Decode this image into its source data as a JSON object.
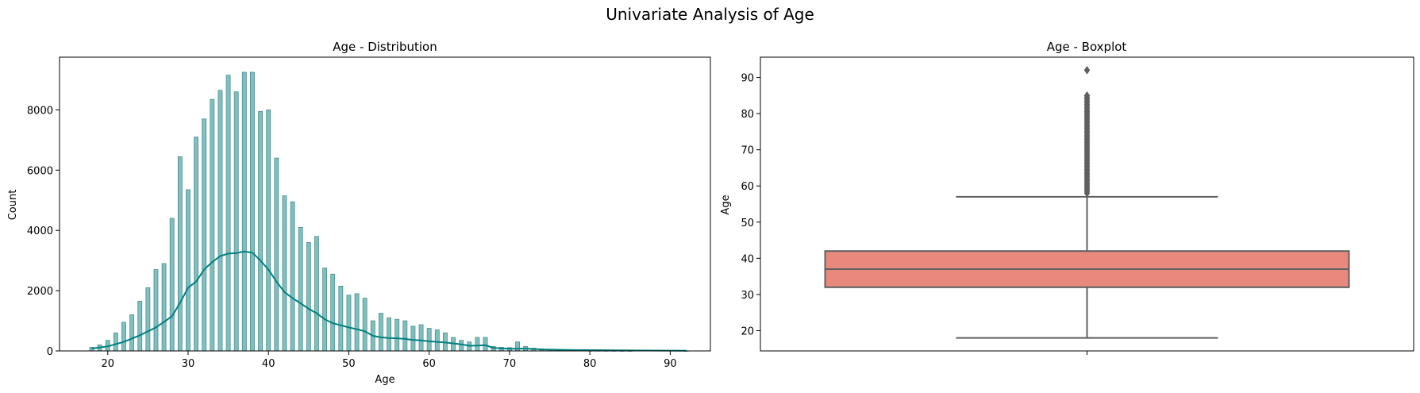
{
  "figure": {
    "suptitle": "Univariate Analysis of Age"
  },
  "chart_data": [
    {
      "type": "bar",
      "subtype": "histogram-with-kde",
      "title": "Age - Distribution",
      "xlabel": "Age",
      "ylabel": "Count",
      "xlim": [
        14,
        95
      ],
      "ylim": [
        0,
        9750
      ],
      "xticks": [
        20,
        30,
        40,
        50,
        60,
        70,
        80,
        90
      ],
      "yticks": [
        0,
        2000,
        4000,
        6000,
        8000
      ],
      "bar_color": "#7fbfbf",
      "bar_edge_color": "#4f8f8f",
      "kde_color": "#008080",
      "bins": [
        {
          "x": 18,
          "count": 120
        },
        {
          "x": 19,
          "count": 200
        },
        {
          "x": 20,
          "count": 350
        },
        {
          "x": 21,
          "count": 600
        },
        {
          "x": 22,
          "count": 950
        },
        {
          "x": 23,
          "count": 1200
        },
        {
          "x": 24,
          "count": 1650
        },
        {
          "x": 25,
          "count": 2100
        },
        {
          "x": 26,
          "count": 2700
        },
        {
          "x": 27,
          "count": 2900
        },
        {
          "x": 28,
          "count": 4400
        },
        {
          "x": 29,
          "count": 6450
        },
        {
          "x": 30,
          "count": 5350
        },
        {
          "x": 31,
          "count": 7100
        },
        {
          "x": 32,
          "count": 7700
        },
        {
          "x": 33,
          "count": 8350
        },
        {
          "x": 34,
          "count": 8650
        },
        {
          "x": 35,
          "count": 9150
        },
        {
          "x": 36,
          "count": 8600
        },
        {
          "x": 37,
          "count": 9250
        },
        {
          "x": 38,
          "count": 9250
        },
        {
          "x": 39,
          "count": 7950
        },
        {
          "x": 40,
          "count": 8000
        },
        {
          "x": 41,
          "count": 6400
        },
        {
          "x": 42,
          "count": 5150
        },
        {
          "x": 43,
          "count": 4950
        },
        {
          "x": 44,
          "count": 4100
        },
        {
          "x": 45,
          "count": 3600
        },
        {
          "x": 46,
          "count": 3800
        },
        {
          "x": 47,
          "count": 2750
        },
        {
          "x": 48,
          "count": 2550
        },
        {
          "x": 49,
          "count": 2150
        },
        {
          "x": 50,
          "count": 1850
        },
        {
          "x": 51,
          "count": 1900
        },
        {
          "x": 52,
          "count": 1750
        },
        {
          "x": 53,
          "count": 1000
        },
        {
          "x": 54,
          "count": 1250
        },
        {
          "x": 55,
          "count": 1100
        },
        {
          "x": 56,
          "count": 1050
        },
        {
          "x": 57,
          "count": 1000
        },
        {
          "x": 58,
          "count": 820
        },
        {
          "x": 59,
          "count": 870
        },
        {
          "x": 60,
          "count": 750
        },
        {
          "x": 61,
          "count": 700
        },
        {
          "x": 62,
          "count": 600
        },
        {
          "x": 63,
          "count": 450
        },
        {
          "x": 64,
          "count": 350
        },
        {
          "x": 65,
          "count": 300
        },
        {
          "x": 66,
          "count": 450
        },
        {
          "x": 67,
          "count": 450
        },
        {
          "x": 68,
          "count": 150
        },
        {
          "x": 69,
          "count": 120
        },
        {
          "x": 70,
          "count": 110
        },
        {
          "x": 71,
          "count": 300
        },
        {
          "x": 72,
          "count": 150
        },
        {
          "x": 73,
          "count": 90
        },
        {
          "x": 74,
          "count": 70
        },
        {
          "x": 75,
          "count": 50
        },
        {
          "x": 76,
          "count": 35
        },
        {
          "x": 77,
          "count": 25
        },
        {
          "x": 78,
          "count": 15
        },
        {
          "x": 79,
          "count": 10
        },
        {
          "x": 80,
          "count": 8
        },
        {
          "x": 81,
          "count": 6
        },
        {
          "x": 82,
          "count": 4
        },
        {
          "x": 83,
          "count": 3
        },
        {
          "x": 84,
          "count": 2
        },
        {
          "x": 85,
          "count": 2
        },
        {
          "x": 92,
          "count": 1
        }
      ],
      "kde": [
        [
          18,
          80
        ],
        [
          20,
          150
        ],
        [
          22,
          300
        ],
        [
          24,
          520
        ],
        [
          26,
          780
        ],
        [
          28,
          1150
        ],
        [
          29,
          1600
        ],
        [
          30,
          2100
        ],
        [
          31,
          2300
        ],
        [
          32,
          2700
        ],
        [
          33,
          2950
        ],
        [
          34,
          3150
        ],
        [
          35,
          3230
        ],
        [
          36,
          3250
        ],
        [
          37,
          3300
        ],
        [
          38,
          3260
        ],
        [
          39,
          3000
        ],
        [
          40,
          2700
        ],
        [
          41,
          2300
        ],
        [
          42,
          1950
        ],
        [
          43,
          1750
        ],
        [
          44,
          1580
        ],
        [
          45,
          1400
        ],
        [
          46,
          1250
        ],
        [
          47,
          1050
        ],
        [
          48,
          920
        ],
        [
          49,
          850
        ],
        [
          50,
          780
        ],
        [
          51,
          720
        ],
        [
          52,
          650
        ],
        [
          53,
          500
        ],
        [
          54,
          450
        ],
        [
          55,
          430
        ],
        [
          56,
          420
        ],
        [
          57,
          400
        ],
        [
          58,
          360
        ],
        [
          59,
          350
        ],
        [
          60,
          320
        ],
        [
          62,
          280
        ],
        [
          64,
          220
        ],
        [
          65,
          170
        ],
        [
          66,
          180
        ],
        [
          67,
          190
        ],
        [
          68,
          100
        ],
        [
          70,
          70
        ],
        [
          72,
          80
        ],
        [
          74,
          50
        ],
        [
          78,
          30
        ],
        [
          85,
          15
        ],
        [
          92,
          5
        ]
      ]
    },
    {
      "type": "boxplot",
      "title": "Age - Boxplot",
      "xlabel": "",
      "ylabel": "Age",
      "ylim": [
        14.4,
        95.6
      ],
      "yticks": [
        20,
        30,
        40,
        50,
        60,
        70,
        80,
        90
      ],
      "box_color": "#e9897e",
      "line_color": "#5f5f5f",
      "stats": {
        "whisker_low": 18,
        "q1": 32,
        "median": 37,
        "q3": 42,
        "whisker_high": 57
      },
      "outliers": [
        58,
        58.5,
        59,
        59.5,
        60,
        60.5,
        61,
        61.5,
        62,
        62.5,
        63,
        63.5,
        64,
        64.5,
        65,
        65.5,
        66,
        66.5,
        67,
        67.5,
        68,
        68.5,
        69,
        69.5,
        70,
        70.5,
        71,
        71.5,
        72,
        72.5,
        73,
        73.5,
        74,
        74.5,
        75,
        75.5,
        76,
        76.5,
        77,
        77.5,
        78,
        78.5,
        79,
        79.5,
        80,
        80.5,
        81,
        81.5,
        82,
        82.5,
        83,
        83.5,
        84,
        84.5,
        85,
        92
      ]
    }
  ]
}
